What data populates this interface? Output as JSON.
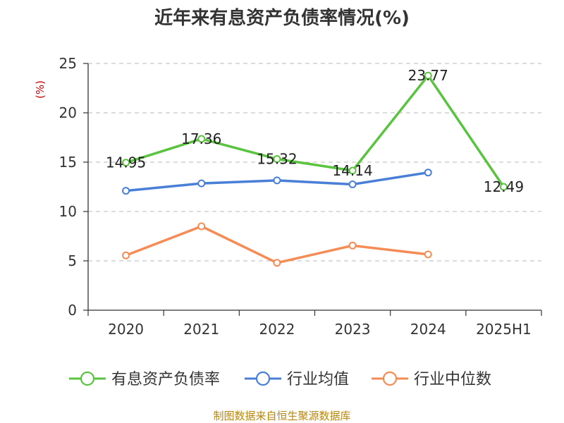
{
  "chart_data": {
    "type": "line",
    "title": "近年来有息资产负债率情况(%)",
    "unit": "(%)",
    "categories": [
      "2020",
      "2021",
      "2022",
      "2023",
      "2024",
      "2025H1"
    ],
    "ylim": [
      0,
      25
    ],
    "yticks": [
      0,
      5,
      10,
      15,
      20,
      25
    ],
    "grid": true,
    "legend_position": "bottom",
    "series": [
      {
        "name": "有息资产负债率",
        "color": "#5ac33f",
        "values": [
          14.95,
          17.36,
          15.32,
          14.14,
          23.77,
          12.49
        ],
        "labels": [
          "14.95",
          "17.36",
          "15.32",
          "14.14",
          "23.77",
          "12.49"
        ]
      },
      {
        "name": "行业均值",
        "color": "#4a7fd8",
        "values": [
          12.1,
          12.85,
          13.15,
          12.75,
          13.95,
          null
        ]
      },
      {
        "name": "行业中位数",
        "color": "#f58c55",
        "values": [
          5.55,
          8.5,
          4.8,
          6.55,
          5.65,
          null
        ]
      }
    ]
  },
  "source": "制图数据来自恒生聚源数据库"
}
